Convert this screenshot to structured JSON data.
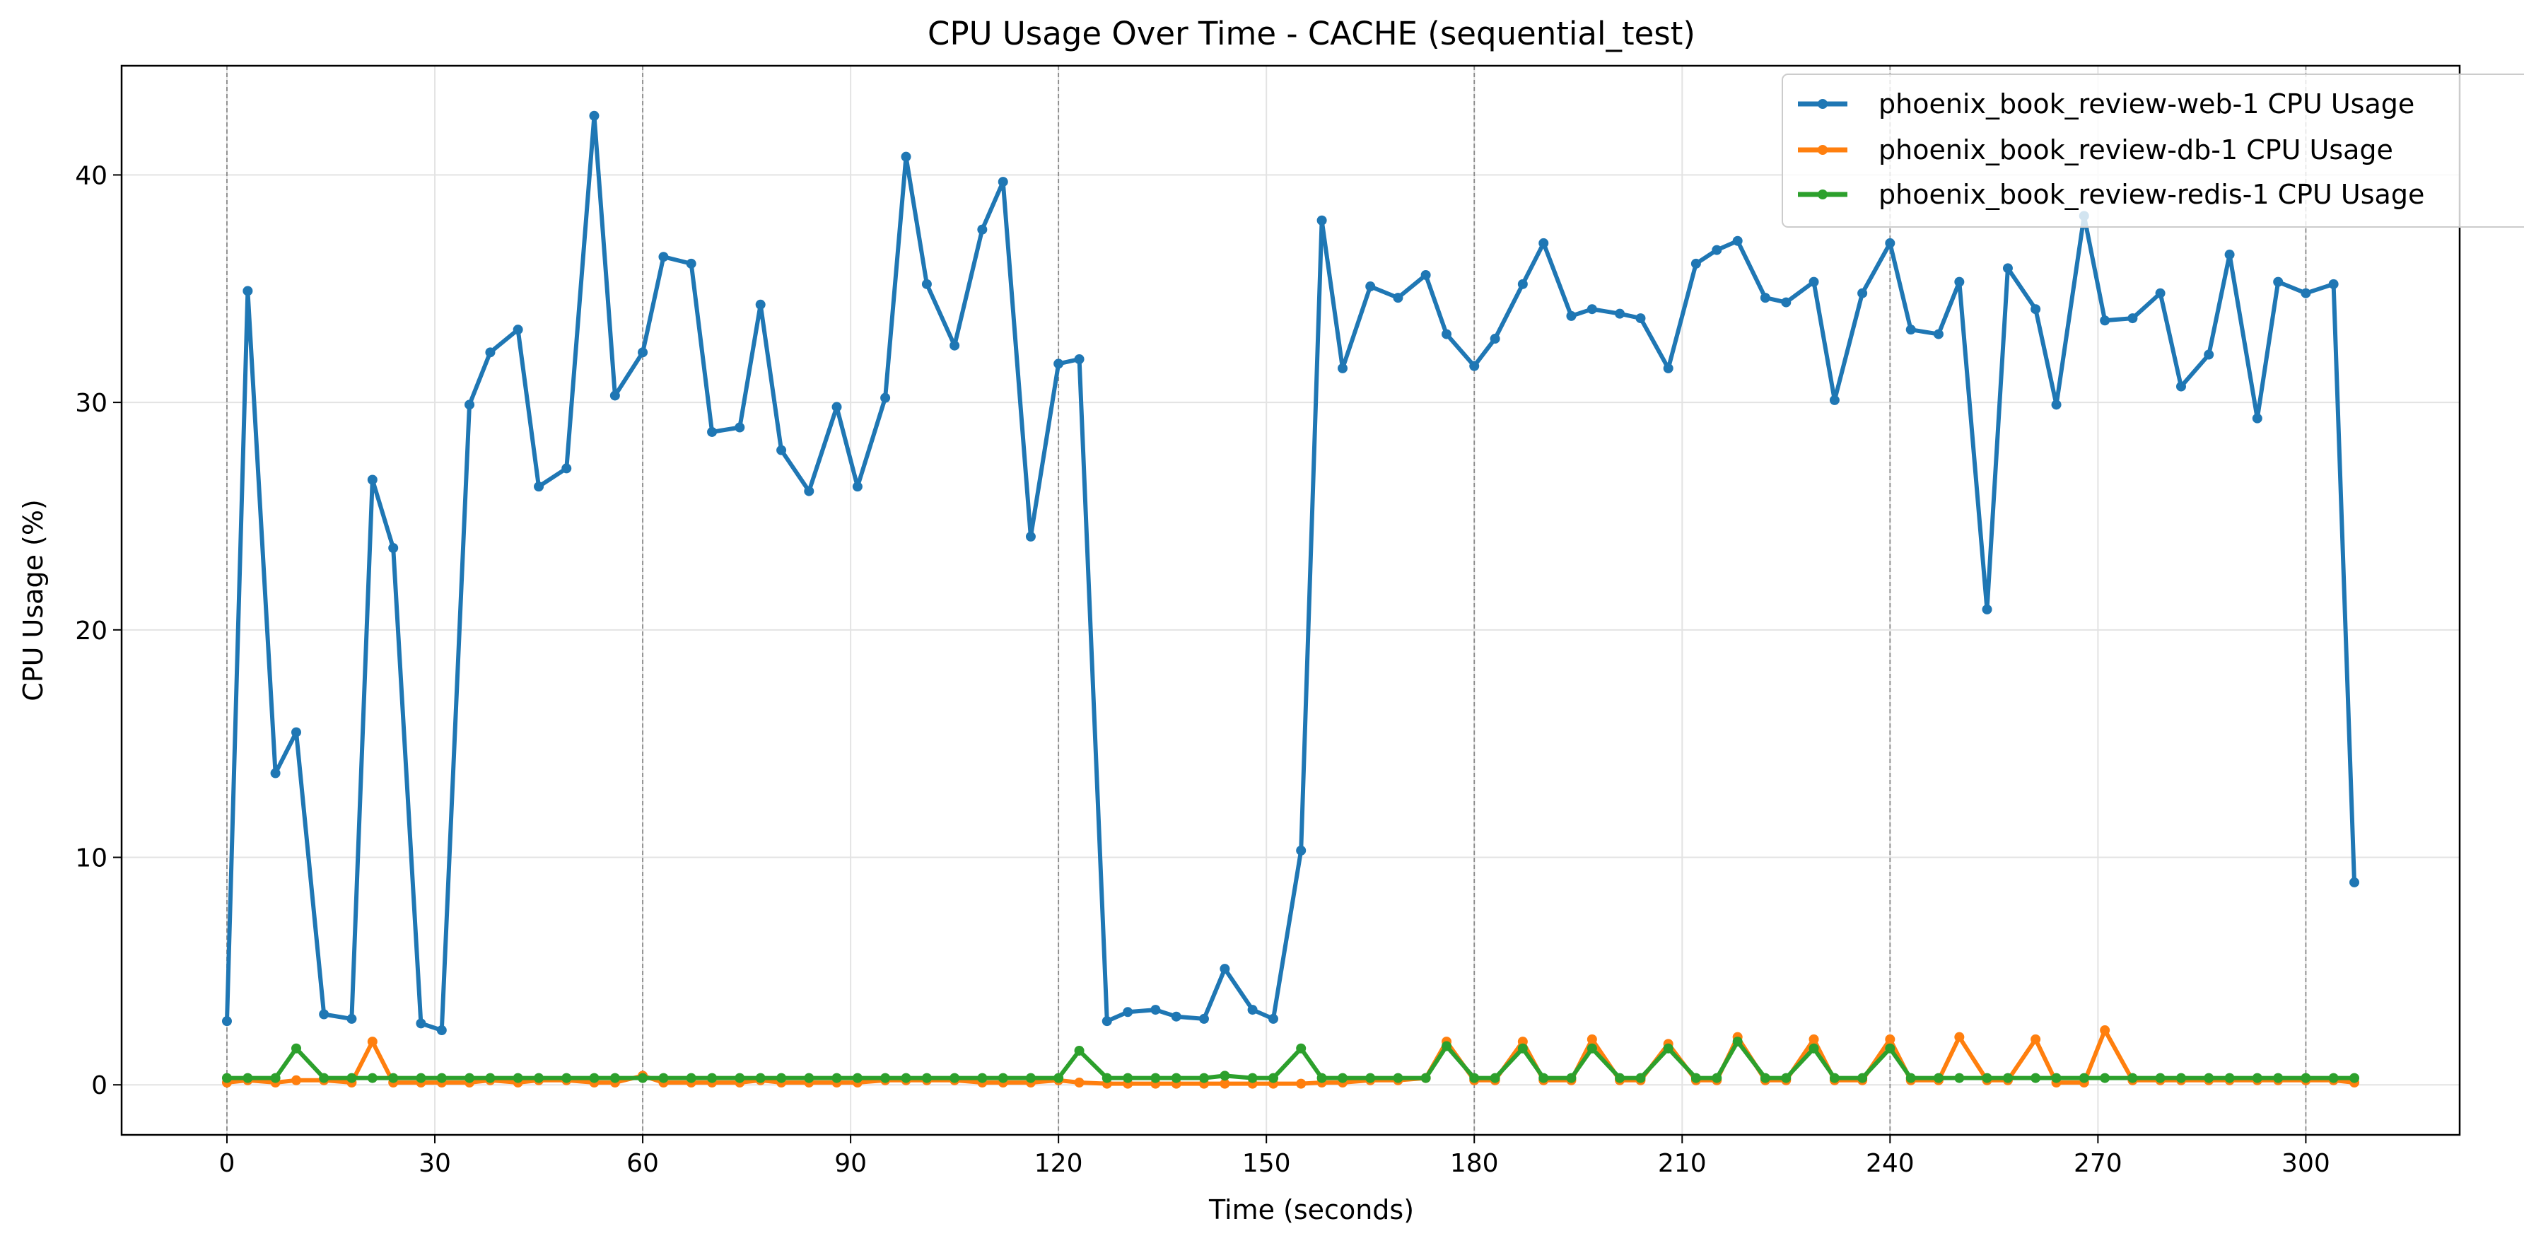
{
  "chart_data": {
    "type": "line",
    "title": "CPU Usage Over Time - CACHE (sequential_test)",
    "xlabel": "Time (seconds)",
    "ylabel": "CPU Usage (%)",
    "xlim": [
      -15.2,
      322.2
    ],
    "ylim": [
      -2.2,
      44.8
    ],
    "xticks": [
      0,
      30,
      60,
      90,
      120,
      150,
      180,
      210,
      240,
      270,
      300
    ],
    "yticks": [
      0,
      10,
      20,
      30,
      40
    ],
    "x_tick_labels": [
      "0",
      "30",
      "60",
      "90",
      "120",
      "150",
      "180",
      "210",
      "240",
      "270",
      "300"
    ],
    "y_tick_labels": [
      "0",
      "10",
      "20",
      "30",
      "40"
    ],
    "grid": true,
    "vertical_markers": [
      0,
      60,
      120,
      180,
      240,
      300
    ],
    "legend_position": "top-right",
    "series": [
      {
        "name": "phoenix_book_review-web-1 CPU Usage",
        "color": "#1f77b4",
        "x": [
          0,
          3,
          7,
          10,
          14,
          18,
          21,
          24,
          28,
          31,
          35,
          38,
          42,
          45,
          49,
          53,
          56,
          60,
          63,
          67,
          70,
          74,
          77,
          80,
          84,
          88,
          91,
          95,
          98,
          101,
          105,
          109,
          112,
          116,
          120,
          123,
          127,
          130,
          134,
          137,
          141,
          144,
          148,
          151,
          155,
          158,
          161,
          165,
          169,
          173,
          176,
          180,
          183,
          187,
          190,
          194,
          197,
          201,
          204,
          208,
          212,
          215,
          218,
          222,
          225,
          229,
          232,
          236,
          240,
          243,
          247,
          250,
          254,
          257,
          261,
          264,
          268,
          271,
          275,
          279,
          282,
          286,
          289,
          293,
          296,
          300,
          304,
          307
        ],
        "y": [
          2.8,
          34.9,
          13.7,
          15.5,
          3.1,
          2.9,
          26.6,
          23.6,
          2.7,
          2.4,
          29.9,
          32.2,
          33.2,
          26.3,
          27.1,
          42.6,
          30.3,
          32.2,
          36.4,
          36.1,
          28.7,
          28.9,
          34.3,
          27.9,
          26.1,
          29.8,
          26.3,
          30.2,
          40.8,
          35.2,
          32.5,
          37.6,
          39.7,
          24.1,
          31.7,
          31.9,
          2.8,
          3.2,
          3.3,
          3.0,
          2.9,
          5.1,
          3.3,
          2.9,
          10.3,
          38.0,
          31.5,
          35.1,
          34.6,
          35.6,
          33.0,
          31.6,
          32.8,
          35.2,
          37.0,
          33.8,
          34.1,
          33.9,
          33.7,
          31.5,
          36.1,
          36.7,
          37.1,
          34.6,
          34.4,
          35.3,
          30.1,
          34.8,
          37.0,
          33.2,
          33.0,
          35.3,
          20.9,
          35.9,
          34.1,
          29.9,
          38.2,
          33.6,
          33.7,
          34.8,
          30.7,
          32.1,
          36.5,
          29.3,
          35.3,
          34.8,
          35.2,
          8.9
        ]
      },
      {
        "name": "phoenix_book_review-db-1 CPU Usage",
        "color": "#ff7f0e",
        "x": [
          0,
          3,
          7,
          10,
          14,
          18,
          21,
          24,
          28,
          31,
          35,
          38,
          42,
          45,
          49,
          53,
          56,
          60,
          63,
          67,
          70,
          74,
          77,
          80,
          84,
          88,
          91,
          95,
          98,
          101,
          105,
          109,
          112,
          116,
          120,
          123,
          127,
          130,
          134,
          137,
          141,
          144,
          148,
          151,
          155,
          158,
          161,
          165,
          169,
          173,
          176,
          180,
          183,
          187,
          190,
          194,
          197,
          201,
          204,
          208,
          212,
          215,
          218,
          222,
          225,
          229,
          232,
          236,
          240,
          243,
          247,
          250,
          254,
          257,
          261,
          264,
          268,
          271,
          275,
          279,
          282,
          286,
          289,
          293,
          296,
          300,
          304,
          307
        ],
        "y": [
          0.1,
          0.2,
          0.1,
          0.2,
          0.2,
          0.1,
          1.9,
          0.1,
          0.1,
          0.1,
          0.1,
          0.2,
          0.1,
          0.2,
          0.2,
          0.1,
          0.1,
          0.4,
          0.1,
          0.1,
          0.1,
          0.1,
          0.2,
          0.1,
          0.1,
          0.1,
          0.1,
          0.2,
          0.2,
          0.2,
          0.2,
          0.1,
          0.1,
          0.1,
          0.2,
          0.1,
          0.05,
          0.05,
          0.05,
          0.05,
          0.05,
          0.05,
          0.05,
          0.05,
          0.05,
          0.1,
          0.1,
          0.2,
          0.2,
          0.3,
          1.9,
          0.2,
          0.2,
          1.9,
          0.2,
          0.2,
          2.0,
          0.2,
          0.2,
          1.8,
          0.2,
          0.2,
          2.1,
          0.2,
          0.2,
          2.0,
          0.2,
          0.2,
          2.0,
          0.2,
          0.2,
          2.1,
          0.2,
          0.2,
          2.0,
          0.1,
          0.1,
          2.4,
          0.2,
          0.2,
          0.2,
          0.2,
          0.2,
          0.2,
          0.2,
          0.2,
          0.2,
          0.1
        ]
      },
      {
        "name": "phoenix_book_review-redis-1 CPU Usage",
        "color": "#2ca02c",
        "x": [
          0,
          3,
          7,
          10,
          14,
          18,
          21,
          24,
          28,
          31,
          35,
          38,
          42,
          45,
          49,
          53,
          56,
          60,
          63,
          67,
          70,
          74,
          77,
          80,
          84,
          88,
          91,
          95,
          98,
          101,
          105,
          109,
          112,
          116,
          120,
          123,
          127,
          130,
          134,
          137,
          141,
          144,
          148,
          151,
          155,
          158,
          161,
          165,
          169,
          173,
          176,
          180,
          183,
          187,
          190,
          194,
          197,
          201,
          204,
          208,
          212,
          215,
          218,
          222,
          225,
          229,
          232,
          236,
          240,
          243,
          247,
          250,
          254,
          257,
          261,
          264,
          268,
          271,
          275,
          279,
          282,
          286,
          289,
          293,
          296,
          300,
          304,
          307
        ],
        "y": [
          0.3,
          0.3,
          0.3,
          1.6,
          0.3,
          0.3,
          0.3,
          0.3,
          0.3,
          0.3,
          0.3,
          0.3,
          0.3,
          0.3,
          0.3,
          0.3,
          0.3,
          0.3,
          0.3,
          0.3,
          0.3,
          0.3,
          0.3,
          0.3,
          0.3,
          0.3,
          0.3,
          0.3,
          0.3,
          0.3,
          0.3,
          0.3,
          0.3,
          0.3,
          0.3,
          1.5,
          0.3,
          0.3,
          0.3,
          0.3,
          0.3,
          0.4,
          0.3,
          0.3,
          1.6,
          0.3,
          0.3,
          0.3,
          0.3,
          0.3,
          1.7,
          0.3,
          0.3,
          1.6,
          0.3,
          0.3,
          1.6,
          0.3,
          0.3,
          1.6,
          0.3,
          0.3,
          1.9,
          0.3,
          0.3,
          1.6,
          0.3,
          0.3,
          1.6,
          0.3,
          0.3,
          0.3,
          0.3,
          0.3,
          0.3,
          0.3,
          0.3,
          0.3,
          0.3,
          0.3,
          0.3,
          0.3,
          0.3,
          0.3,
          0.3,
          0.3,
          0.3,
          0.3
        ]
      }
    ]
  }
}
